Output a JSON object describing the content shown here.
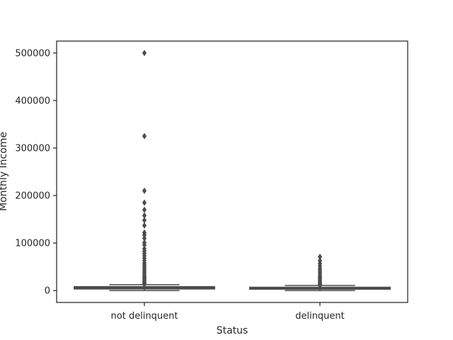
{
  "chart_data": {
    "type": "box",
    "title": "",
    "xlabel": "Status",
    "ylabel": "Monthly Income",
    "categories": [
      "not delinquent",
      "delinquent"
    ],
    "ylim": [
      -25000,
      525000
    ],
    "yticks": [
      0,
      100000,
      200000,
      300000,
      400000,
      500000
    ],
    "ytick_labels": [
      "0",
      "100000",
      "200000",
      "300000",
      "400000",
      "500000"
    ],
    "grid": false,
    "legend": "none",
    "box_color": "#4c4c4c",
    "boxes": [
      {
        "category": "not delinquent",
        "q1": 3400,
        "median": 5400,
        "q3": 8300,
        "whisker_low": 0,
        "whisker_high": 12500,
        "outliers": [
          500000,
          325000,
          210000,
          185000,
          170000,
          158000,
          148000,
          137000,
          122000,
          117000,
          110000,
          101000,
          96000,
          88000,
          83000,
          78000,
          73000,
          68000,
          63000,
          58000,
          54000,
          50000,
          46000,
          42000,
          38000,
          34000,
          30000,
          27000,
          24000,
          21000,
          18500,
          16500,
          14500,
          13200
        ]
      },
      {
        "category": "delinquent",
        "q1": 2900,
        "median": 4600,
        "q3": 7000,
        "whisker_low": 0,
        "whisker_high": 10800,
        "outliers": [
          71000,
          63000,
          57000,
          52000,
          47000,
          43000,
          39000,
          35000,
          31000,
          28000,
          25000,
          22000,
          19500,
          17000,
          15000,
          13500,
          12000,
          11300
        ]
      }
    ]
  }
}
